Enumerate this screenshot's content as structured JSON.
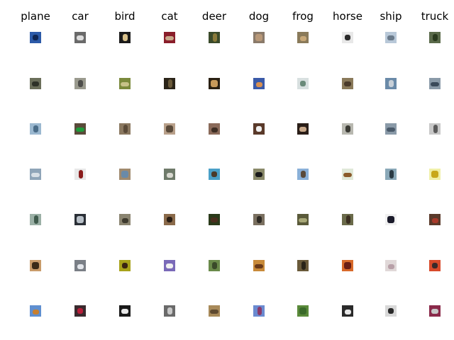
{
  "figure": {
    "classes": [
      {
        "label": "plane",
        "thumbs": [
          {
            "bg": "#2c5aa8",
            "fg": "#0f2552"
          },
          {
            "bg": "#6b6f5a",
            "fg": "#2e3228"
          },
          {
            "bg": "#9bb8d0",
            "fg": "#4a6c88"
          },
          {
            "bg": "#8fa5b8",
            "fg": "#d8e0e6"
          },
          {
            "bg": "#9bb0a6",
            "fg": "#3f5a4c"
          },
          {
            "bg": "#c89b6a",
            "fg": "#3a2a18"
          },
          {
            "bg": "#5f8fd0",
            "fg": "#c87f2e"
          }
        ]
      },
      {
        "label": "car",
        "thumbs": [
          {
            "bg": "#6a6a6a",
            "fg": "#dcdcdc"
          },
          {
            "bg": "#9a9a8e",
            "fg": "#4d4d4a"
          },
          {
            "bg": "#5a4a3a",
            "fg": "#1f9b3a"
          },
          {
            "bg": "#e8e8e8",
            "fg": "#8a1b1b"
          },
          {
            "bg": "#2a2f36",
            "fg": "#b8c0c8"
          },
          {
            "bg": "#7a7f86",
            "fg": "#e2e5ea"
          },
          {
            "bg": "#3a2a2e",
            "fg": "#b81e3a"
          }
        ]
      },
      {
        "label": "bird",
        "thumbs": [
          {
            "bg": "#1a1a1a",
            "fg": "#d8c08a"
          },
          {
            "bg": "#7b8a3c",
            "fg": "#c7c288"
          },
          {
            "bg": "#8a7860",
            "fg": "#5a4a38"
          },
          {
            "bg": "#a08a6e",
            "fg": "#6a8aa8"
          },
          {
            "bg": "#8a8470",
            "fg": "#3e3a2e"
          },
          {
            "bg": "#a8a21a",
            "fg": "#3a2412"
          },
          {
            "bg": "#1a1a1a",
            "fg": "#e8e8e8"
          }
        ]
      },
      {
        "label": "cat",
        "thumbs": [
          {
            "bg": "#8a1e2a",
            "fg": "#c8a88a"
          },
          {
            "bg": "#2a2418",
            "fg": "#6a5a3a"
          },
          {
            "bg": "#b8a08a",
            "fg": "#5a4a3a"
          },
          {
            "bg": "#6e7a6a",
            "fg": "#d8d8d0"
          },
          {
            "bg": "#8a6a4a",
            "fg": "#2a1e14"
          },
          {
            "bg": "#7a6ab8",
            "fg": "#f0f0f0"
          },
          {
            "bg": "#6a6a6a",
            "fg": "#c8c8c8"
          }
        ]
      },
      {
        "label": "deer",
        "thumbs": [
          {
            "bg": "#3a4a2a",
            "fg": "#8a7a3a"
          },
          {
            "bg": "#2a2012",
            "fg": "#c89a5a"
          },
          {
            "bg": "#8a6a5a",
            "fg": "#3e2e24"
          },
          {
            "bg": "#4aa0c8",
            "fg": "#4a3a2a"
          },
          {
            "bg": "#2a3a1a",
            "fg": "#4a2e1e"
          },
          {
            "bg": "#6a8a4a",
            "fg": "#3a4a2a"
          },
          {
            "bg": "#a88a5a",
            "fg": "#5e4a30"
          }
        ]
      },
      {
        "label": "dog",
        "thumbs": [
          {
            "bg": "#8a7a6a",
            "fg": "#b89878"
          },
          {
            "bg": "#3a5aa8",
            "fg": "#d89050"
          },
          {
            "bg": "#5a3a2a",
            "fg": "#f0f0f0"
          },
          {
            "bg": "#8a8a6a",
            "fg": "#1a1a1a"
          },
          {
            "bg": "#7a7060",
            "fg": "#2e2a24"
          },
          {
            "bg": "#c88a3a",
            "fg": "#6a3a1a"
          },
          {
            "bg": "#6a8ad0",
            "fg": "#8a3a6a"
          }
        ]
      },
      {
        "label": "frog",
        "thumbs": [
          {
            "bg": "#8a7a5a",
            "fg": "#c8a878"
          },
          {
            "bg": "#d8e0e0",
            "fg": "#6a8a7a"
          },
          {
            "bg": "#2a1e18",
            "fg": "#c8a88a"
          },
          {
            "bg": "#8ab0d8",
            "fg": "#5a4a3a"
          },
          {
            "bg": "#5a5a3a",
            "fg": "#a8a878"
          },
          {
            "bg": "#6a5a3a",
            "fg": "#2a2418"
          },
          {
            "bg": "#5a8a3a",
            "fg": "#3a6a2a"
          }
        ]
      },
      {
        "label": "horse",
        "thumbs": [
          {
            "bg": "#e8e8e8",
            "fg": "#2a2a2a"
          },
          {
            "bg": "#8a7a5a",
            "fg": "#4a3a2a"
          },
          {
            "bg": "#b8b8b0",
            "fg": "#3a3a34"
          },
          {
            "bg": "#e0e8d8",
            "fg": "#8a5a2a"
          },
          {
            "bg": "#6a6a4a",
            "fg": "#3a2e20"
          },
          {
            "bg": "#d86a2a",
            "fg": "#6a1e14"
          },
          {
            "bg": "#2a2a2a",
            "fg": "#e8e8e8"
          }
        ]
      },
      {
        "label": "ship",
        "thumbs": [
          {
            "bg": "#b8c8d8",
            "fg": "#6a7a8a"
          },
          {
            "bg": "#6a8aa8",
            "fg": "#c8d0d8"
          },
          {
            "bg": "#8a9aa8",
            "fg": "#4a5a6a"
          },
          {
            "bg": "#8aa8b8",
            "fg": "#2a3a44"
          },
          {
            "bg": "#f0f0f0",
            "fg": "#1a1a2a"
          },
          {
            "bg": "#e0d8d8",
            "fg": "#b8a0a8"
          },
          {
            "bg": "#d8d8d8",
            "fg": "#2a2a2a"
          }
        ]
      },
      {
        "label": "truck",
        "thumbs": [
          {
            "bg": "#5a6a4a",
            "fg": "#2a3a1e"
          },
          {
            "bg": "#8a9aa8",
            "fg": "#3a4a5a"
          },
          {
            "bg": "#c8c8c8",
            "fg": "#5a5a5a"
          },
          {
            "bg": "#f0f0a8",
            "fg": "#c8a81a"
          },
          {
            "bg": "#5a3a2a",
            "fg": "#a83a2a"
          },
          {
            "bg": "#d84a2a",
            "fg": "#3a2a2a"
          },
          {
            "bg": "#8a2a4a",
            "fg": "#c8c8c8"
          }
        ]
      }
    ]
  }
}
